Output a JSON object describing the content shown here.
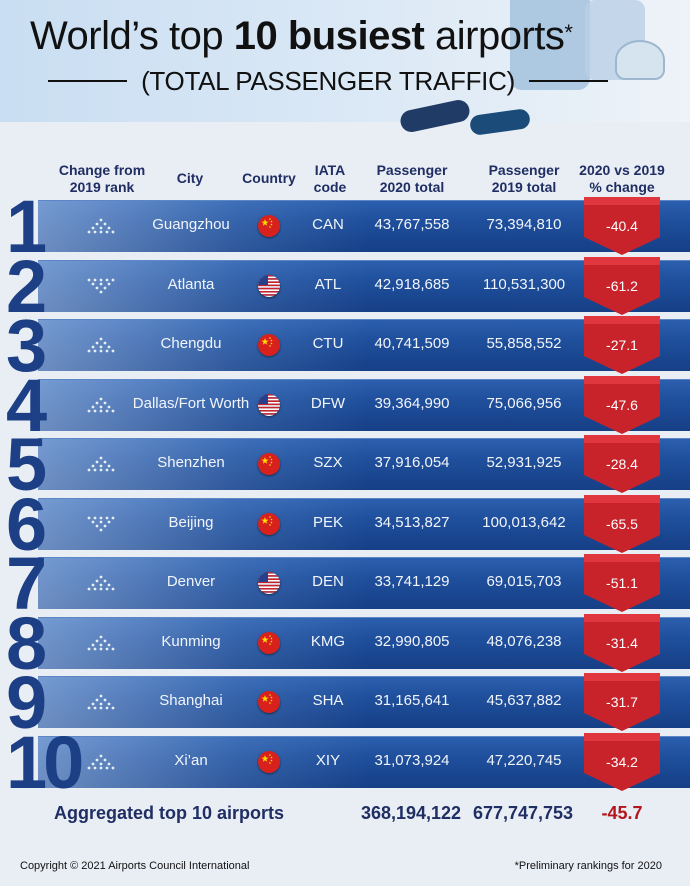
{
  "header": {
    "title_pre": "World’s top ",
    "title_bold": "10 busiest",
    "title_post": " airports",
    "title_mark": "*",
    "subtitle": "(TOTAL PASSENGER TRAFFIC)"
  },
  "columns": {
    "change_l1": "Change from",
    "change_l2": "2019 rank",
    "city": "City",
    "country": "Country",
    "iata_l1": "IATA",
    "iata_l2": "code",
    "p20_l1": "Passenger",
    "p20_l2": "2020 total",
    "p19_l1": "Passenger",
    "p19_l2": "2019 total",
    "pct_l1": "2020 vs 2019",
    "pct_l2": "% change"
  },
  "rows": [
    {
      "rank": "1",
      "trend": "up",
      "city": "Guangzhou",
      "country": "cn-flag-icon",
      "iata": "CAN",
      "p20": "43,767,558",
      "p19": "73,394,810",
      "pct": "-40.4"
    },
    {
      "rank": "2",
      "trend": "down",
      "city": "Atlanta",
      "country": "us-flag-icon",
      "iata": "ATL",
      "p20": "42,918,685",
      "p19": "110,531,300",
      "pct": "-61.2"
    },
    {
      "rank": "3",
      "trend": "up",
      "city": "Chengdu",
      "country": "cn-flag-icon",
      "iata": "CTU",
      "p20": "40,741,509",
      "p19": "55,858,552",
      "pct": "-27.1"
    },
    {
      "rank": "4",
      "trend": "up",
      "city": "Dallas/Fort Worth",
      "country": "us-flag-icon",
      "iata": "DFW",
      "p20": "39,364,990",
      "p19": "75,066,956",
      "pct": "-47.6"
    },
    {
      "rank": "5",
      "trend": "up",
      "city": "Shenzhen",
      "country": "cn-flag-icon",
      "iata": "SZX",
      "p20": "37,916,054",
      "p19": "52,931,925",
      "pct": "-28.4"
    },
    {
      "rank": "6",
      "trend": "down",
      "city": "Beijing",
      "country": "cn-flag-icon",
      "iata": "PEK",
      "p20": "34,513,827",
      "p19": "100,013,642",
      "pct": "-65.5"
    },
    {
      "rank": "7",
      "trend": "up",
      "city": "Denver",
      "country": "us-flag-icon",
      "iata": "DEN",
      "p20": "33,741,129",
      "p19": "69,015,703",
      "pct": "-51.1"
    },
    {
      "rank": "8",
      "trend": "up",
      "city": "Kunming",
      "country": "cn-flag-icon",
      "iata": "KMG",
      "p20": "32,990,805",
      "p19": "48,076,238",
      "pct": "-31.4"
    },
    {
      "rank": "9",
      "trend": "up",
      "city": "Shanghai",
      "country": "cn-flag-icon",
      "iata": "SHA",
      "p20": "31,165,641",
      "p19": "45,637,882",
      "pct": "-31.7"
    },
    {
      "rank": "10",
      "trend": "up",
      "city": "Xi’an",
      "country": "cn-flag-icon",
      "iata": "XIY",
      "p20": "31,073,924",
      "p19": "47,220,745",
      "pct": "-34.2"
    }
  ],
  "totals": {
    "label": "Aggregated top 10 airports",
    "p20": "368,194,122",
    "p19": "677,747,753",
    "pct": "-45.7"
  },
  "footer": {
    "copyright": "Copyright © 2021 Airports Council International",
    "note": "*Preliminary rankings for 2020"
  },
  "colors": {
    "navy": "#1f2e63",
    "band": "#1f4f9c",
    "red": "#c8232b",
    "total_red": "#b3161d"
  }
}
